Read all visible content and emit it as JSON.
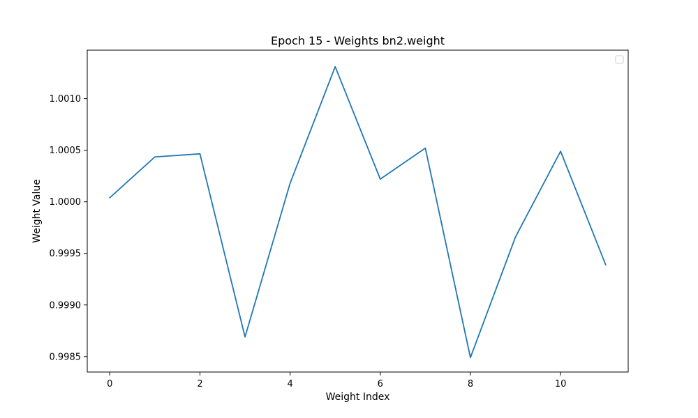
{
  "chart_data": {
    "type": "line",
    "title": "Epoch 15 - Weights bn2.weight",
    "xlabel": "Weight Index",
    "ylabel": "Weight Value",
    "x": [
      0,
      1,
      2,
      3,
      4,
      5,
      6,
      7,
      8,
      9,
      10,
      11
    ],
    "series": [
      {
        "values": [
          1.00004,
          1.000435,
          1.000465,
          0.99869,
          1.00018,
          1.00131,
          1.00022,
          1.00052,
          0.99849,
          0.99966,
          1.00049,
          0.99939
        ],
        "color": "#1f77b4"
      }
    ],
    "xlim": [
      -0.5,
      11.5
    ],
    "ylim": [
      0.99835,
      1.00147
    ],
    "xticks": [
      0,
      2,
      4,
      6,
      8,
      10
    ],
    "xtick_labels": [
      "0",
      "2",
      "4",
      "6",
      "8",
      "10"
    ],
    "yticks": [
      0.9985,
      0.999,
      0.9995,
      1.0,
      1.0005,
      1.001
    ],
    "ytick_labels": [
      "0.9985",
      "0.9990",
      "0.9995",
      "1.0000",
      "1.0005",
      "1.0010"
    ],
    "grid": false,
    "legend": "upper right (empty)"
  }
}
